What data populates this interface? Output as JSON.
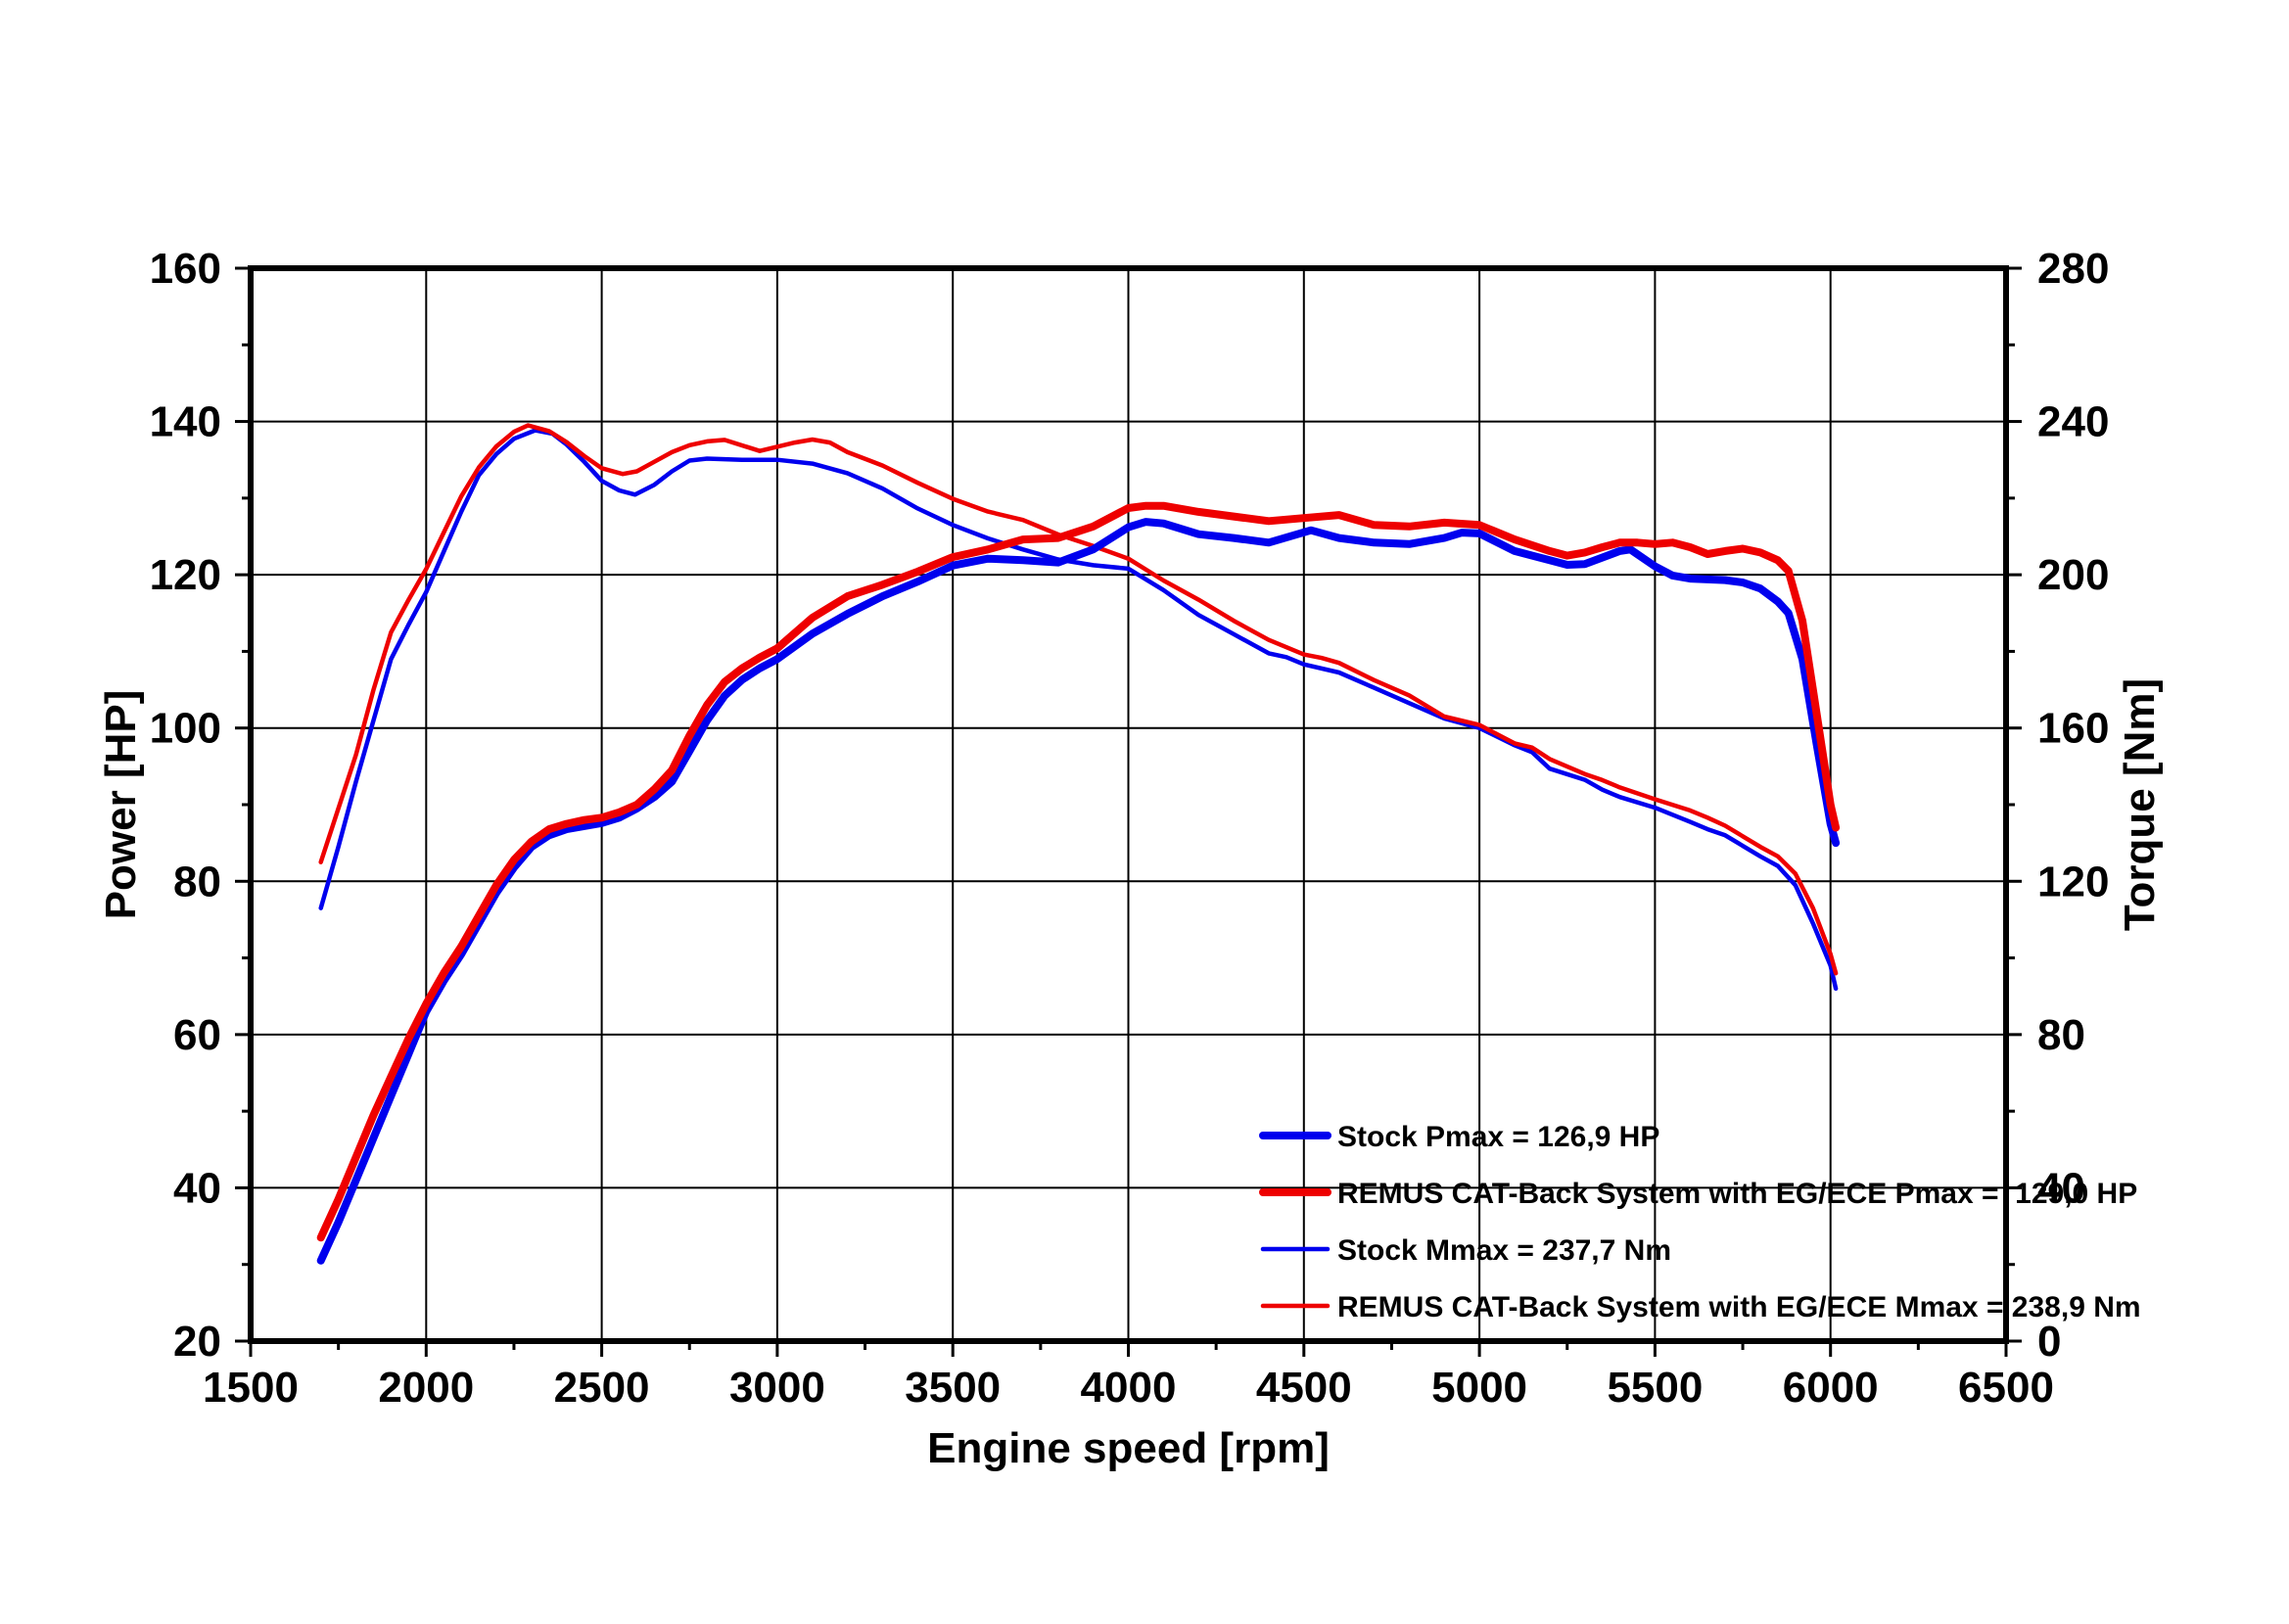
{
  "chart_data": {
    "type": "line",
    "title": "",
    "xlabel": "Engine speed [rpm]",
    "ylabel_left": "Power [HP]",
    "ylabel_right": "Torque [Nm]",
    "background": "#ffffff",
    "grid": true,
    "legend_position": "inside-lower-right",
    "x_axis": {
      "min": 1500,
      "max": 6500,
      "major_ticks": [
        1500,
        2000,
        2500,
        3000,
        3500,
        4000,
        4500,
        5000,
        5500,
        6000,
        6500
      ],
      "minor_ticks": [
        1750,
        2250,
        2750,
        3250,
        3750,
        4250,
        4750,
        5250,
        5750,
        6250
      ],
      "gridlines": [
        2000,
        2500,
        3000,
        3500,
        4000,
        4500,
        5000,
        5500,
        6000
      ]
    },
    "y_left_axis": {
      "min": 20,
      "max": 160,
      "major_ticks": [
        20,
        40,
        60,
        80,
        100,
        120,
        140,
        160
      ],
      "minor_ticks": [
        30,
        50,
        70,
        90,
        110,
        130,
        150
      ],
      "gridlines": [
        40,
        60,
        80,
        100,
        120,
        140
      ]
    },
    "y_right_axis": {
      "min": 0,
      "max": 280,
      "major_ticks": [
        0,
        40,
        80,
        120,
        160,
        200,
        240,
        280
      ],
      "minor_ticks": [
        20,
        60,
        100,
        140,
        180,
        220,
        260
      ]
    },
    "colors": {
      "stock": "#0000ee",
      "remus": "#ee0000",
      "frame": "#000000",
      "grid": "#000000"
    },
    "series": [
      {
        "name": "Stock Pmax = 126,9 HP",
        "axis": "left",
        "color": "#0000ee",
        "width": "thick",
        "points": [
          [
            1700,
            30.5
          ],
          [
            1750,
            35.5
          ],
          [
            1800,
            41
          ],
          [
            1850,
            46.5
          ],
          [
            1900,
            52
          ],
          [
            1950,
            57.5
          ],
          [
            2000,
            63
          ],
          [
            2050,
            67
          ],
          [
            2100,
            70.5
          ],
          [
            2150,
            74.5
          ],
          [
            2200,
            78.5
          ],
          [
            2250,
            81.8
          ],
          [
            2300,
            84.5
          ],
          [
            2350,
            86
          ],
          [
            2400,
            86.8
          ],
          [
            2450,
            87.2
          ],
          [
            2500,
            87.6
          ],
          [
            2550,
            88.3
          ],
          [
            2600,
            89.5
          ],
          [
            2650,
            91
          ],
          [
            2700,
            93
          ],
          [
            2750,
            97
          ],
          [
            2800,
            101
          ],
          [
            2850,
            104.2
          ],
          [
            2900,
            106.3
          ],
          [
            2950,
            107.8
          ],
          [
            3000,
            109
          ],
          [
            3100,
            112.3
          ],
          [
            3200,
            114.9
          ],
          [
            3300,
            117.2
          ],
          [
            3400,
            119.1
          ],
          [
            3500,
            121.2
          ],
          [
            3600,
            122.1
          ],
          [
            3700,
            121.9
          ],
          [
            3800,
            121.6
          ],
          [
            3900,
            123.3
          ],
          [
            4000,
            126.2
          ],
          [
            4050,
            126.9
          ],
          [
            4100,
            126.7
          ],
          [
            4200,
            125.3
          ],
          [
            4300,
            124.8
          ],
          [
            4400,
            124.2
          ],
          [
            4520,
            125.8
          ],
          [
            4600,
            124.8
          ],
          [
            4700,
            124.2
          ],
          [
            4800,
            124
          ],
          [
            4900,
            124.8
          ],
          [
            4950,
            125.5
          ],
          [
            5000,
            125.4
          ],
          [
            5100,
            123.1
          ],
          [
            5200,
            121.9
          ],
          [
            5250,
            121.3
          ],
          [
            5300,
            121.4
          ],
          [
            5400,
            123.1
          ],
          [
            5430,
            123.3
          ],
          [
            5500,
            121.1
          ],
          [
            5550,
            119.9
          ],
          [
            5600,
            119.5
          ],
          [
            5700,
            119.3
          ],
          [
            5750,
            119
          ],
          [
            5800,
            118.2
          ],
          [
            5850,
            116.5
          ],
          [
            5880,
            115
          ],
          [
            5920,
            109
          ],
          [
            5960,
            98
          ],
          [
            6000,
            87.5
          ],
          [
            6015,
            85
          ]
        ]
      },
      {
        "name": "REMUS CAT-Back System with EG/ECE Pmax =  129,0 HP",
        "axis": "left",
        "color": "#ee0000",
        "width": "thick",
        "points": [
          [
            1700,
            33.5
          ],
          [
            1750,
            38.5
          ],
          [
            1800,
            44
          ],
          [
            1850,
            49.5
          ],
          [
            1900,
            54.5
          ],
          [
            1950,
            59.5
          ],
          [
            2000,
            64
          ],
          [
            2050,
            68
          ],
          [
            2100,
            71.5
          ],
          [
            2150,
            75.5
          ],
          [
            2200,
            79.5
          ],
          [
            2250,
            82.8
          ],
          [
            2300,
            85.2
          ],
          [
            2350,
            86.8
          ],
          [
            2400,
            87.5
          ],
          [
            2450,
            88
          ],
          [
            2500,
            88.3
          ],
          [
            2550,
            89
          ],
          [
            2600,
            90
          ],
          [
            2650,
            92
          ],
          [
            2700,
            94.5
          ],
          [
            2750,
            99
          ],
          [
            2800,
            103
          ],
          [
            2850,
            106
          ],
          [
            2900,
            107.8
          ],
          [
            2950,
            109.2
          ],
          [
            3000,
            110.4
          ],
          [
            3100,
            114.4
          ],
          [
            3200,
            117.2
          ],
          [
            3300,
            118.7
          ],
          [
            3400,
            120.4
          ],
          [
            3500,
            122.3
          ],
          [
            3600,
            123.3
          ],
          [
            3700,
            124.6
          ],
          [
            3800,
            124.8
          ],
          [
            3900,
            126.3
          ],
          [
            4000,
            128.7
          ],
          [
            4050,
            129
          ],
          [
            4100,
            129
          ],
          [
            4200,
            128.2
          ],
          [
            4300,
            127.6
          ],
          [
            4400,
            127
          ],
          [
            4500,
            127.4
          ],
          [
            4600,
            127.8
          ],
          [
            4700,
            126.5
          ],
          [
            4800,
            126.3
          ],
          [
            4900,
            126.8
          ],
          [
            5000,
            126.5
          ],
          [
            5100,
            124.6
          ],
          [
            5200,
            123.1
          ],
          [
            5250,
            122.5
          ],
          [
            5300,
            122.9
          ],
          [
            5350,
            123.6
          ],
          [
            5400,
            124.2
          ],
          [
            5450,
            124.2
          ],
          [
            5500,
            124
          ],
          [
            5550,
            124.2
          ],
          [
            5600,
            123.6
          ],
          [
            5650,
            122.7
          ],
          [
            5700,
            123.1
          ],
          [
            5750,
            123.4
          ],
          [
            5800,
            122.9
          ],
          [
            5850,
            121.9
          ],
          [
            5880,
            120.5
          ],
          [
            5920,
            114
          ],
          [
            5960,
            102
          ],
          [
            6000,
            90
          ],
          [
            6015,
            87
          ]
        ]
      },
      {
        "name": "Stock Mmax = 237,7 Nm",
        "axis": "right",
        "color": "#0000ee",
        "width": "thin",
        "points": [
          [
            1700,
            113
          ],
          [
            1750,
            129
          ],
          [
            1800,
            146
          ],
          [
            1850,
            162
          ],
          [
            1900,
            178
          ],
          [
            1950,
            187
          ],
          [
            2000,
            195.5
          ],
          [
            2050,
            206
          ],
          [
            2100,
            216.5
          ],
          [
            2150,
            226
          ],
          [
            2200,
            231.5
          ],
          [
            2250,
            235.5
          ],
          [
            2310,
            237.7
          ],
          [
            2360,
            236.8
          ],
          [
            2400,
            234
          ],
          [
            2450,
            229.5
          ],
          [
            2500,
            224.5
          ],
          [
            2550,
            222
          ],
          [
            2595,
            220.9
          ],
          [
            2650,
            223.5
          ],
          [
            2700,
            227
          ],
          [
            2750,
            229.8
          ],
          [
            2800,
            230.3
          ],
          [
            2900,
            230
          ],
          [
            3000,
            230
          ],
          [
            3100,
            229
          ],
          [
            3200,
            226.5
          ],
          [
            3300,
            222.5
          ],
          [
            3400,
            217.3
          ],
          [
            3500,
            213
          ],
          [
            3600,
            209.5
          ],
          [
            3700,
            206.6
          ],
          [
            3800,
            204
          ],
          [
            3900,
            202.5
          ],
          [
            4000,
            201.6
          ],
          [
            4100,
            196
          ],
          [
            4200,
            189.5
          ],
          [
            4300,
            184.5
          ],
          [
            4400,
            179.5
          ],
          [
            4450,
            178.5
          ],
          [
            4500,
            176.6
          ],
          [
            4600,
            174.5
          ],
          [
            4700,
            170.5
          ],
          [
            4800,
            166.5
          ],
          [
            4900,
            162.5
          ],
          [
            5000,
            160
          ],
          [
            5100,
            155.5
          ],
          [
            5150,
            153.7
          ],
          [
            5200,
            149.4
          ],
          [
            5300,
            146.5
          ],
          [
            5350,
            143.9
          ],
          [
            5400,
            142
          ],
          [
            5500,
            139.2
          ],
          [
            5600,
            135.5
          ],
          [
            5650,
            133.6
          ],
          [
            5700,
            132
          ],
          [
            5800,
            126.5
          ],
          [
            5850,
            124
          ],
          [
            5900,
            119
          ],
          [
            5950,
            109
          ],
          [
            6000,
            98
          ],
          [
            6015,
            92
          ]
        ]
      },
      {
        "name": "REMUS CAT-Back System with EG/ECE Mmax = 238,9 Nm",
        "axis": "right",
        "color": "#ee0000",
        "width": "thin",
        "points": [
          [
            1700,
            125
          ],
          [
            1750,
            139
          ],
          [
            1800,
            153
          ],
          [
            1850,
            170
          ],
          [
            1900,
            185
          ],
          [
            1950,
            193.5
          ],
          [
            2000,
            201.5
          ],
          [
            2050,
            211
          ],
          [
            2100,
            220.5
          ],
          [
            2150,
            228
          ],
          [
            2200,
            233.5
          ],
          [
            2250,
            237.3
          ],
          [
            2290,
            239
          ],
          [
            2350,
            237.5
          ],
          [
            2400,
            234.6
          ],
          [
            2450,
            231
          ],
          [
            2500,
            227.8
          ],
          [
            2560,
            226.3
          ],
          [
            2600,
            227
          ],
          [
            2650,
            229.5
          ],
          [
            2700,
            232
          ],
          [
            2750,
            233.8
          ],
          [
            2800,
            234.8
          ],
          [
            2850,
            235.2
          ],
          [
            2950,
            232.3
          ],
          [
            3050,
            234.5
          ],
          [
            3100,
            235.3
          ],
          [
            3150,
            234.5
          ],
          [
            3200,
            232
          ],
          [
            3300,
            228.5
          ],
          [
            3400,
            224
          ],
          [
            3500,
            219.8
          ],
          [
            3600,
            216.5
          ],
          [
            3700,
            214.3
          ],
          [
            3800,
            210.5
          ],
          [
            3900,
            207.5
          ],
          [
            4000,
            204.2
          ],
          [
            4100,
            198.5
          ],
          [
            4200,
            193.5
          ],
          [
            4300,
            188
          ],
          [
            4400,
            183
          ],
          [
            4500,
            179.2
          ],
          [
            4550,
            178.3
          ],
          [
            4600,
            177
          ],
          [
            4700,
            172.5
          ],
          [
            4800,
            168.5
          ],
          [
            4900,
            163
          ],
          [
            5000,
            160.8
          ],
          [
            5100,
            156
          ],
          [
            5150,
            154.9
          ],
          [
            5200,
            151.9
          ],
          [
            5300,
            148
          ],
          [
            5350,
            146.4
          ],
          [
            5400,
            144.5
          ],
          [
            5500,
            141.4
          ],
          [
            5600,
            138.5
          ],
          [
            5650,
            136.6
          ],
          [
            5700,
            134.5
          ],
          [
            5800,
            129
          ],
          [
            5850,
            126.5
          ],
          [
            5900,
            122
          ],
          [
            5950,
            113
          ],
          [
            6000,
            101
          ],
          [
            6015,
            96
          ]
        ]
      }
    ],
    "legend_items": [
      {
        "label": "Stock Pmax = 126,9 HP",
        "color": "#0000ee",
        "width": "thick"
      },
      {
        "label": "REMUS CAT-Back System with EG/ECE Pmax =  129,0 HP",
        "color": "#ee0000",
        "width": "thick"
      },
      {
        "label": "Stock Mmax = 237,7 Nm",
        "color": "#0000ee",
        "width": "thin"
      },
      {
        "label": "REMUS CAT-Back System with EG/ECE Mmax = 238,9 Nm",
        "color": "#ee0000",
        "width": "thin"
      }
    ]
  }
}
